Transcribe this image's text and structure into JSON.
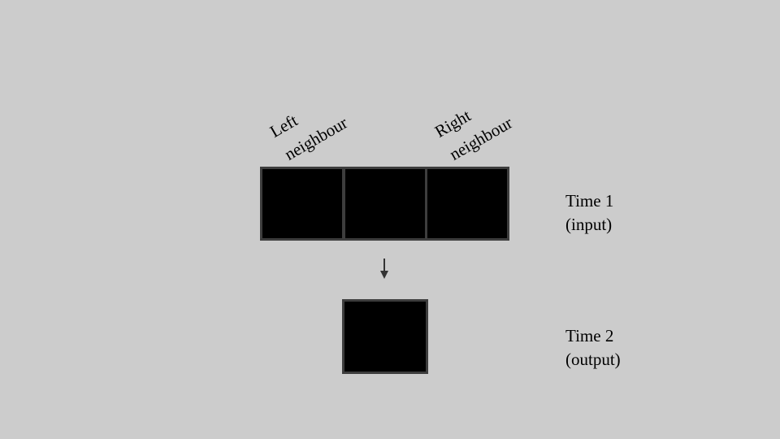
{
  "neighbour_labels": {
    "left": {
      "line1": "Left",
      "line2": "neighbour"
    },
    "right": {
      "line1": "Right",
      "line2": "neighbour"
    }
  },
  "time_labels": {
    "input": {
      "line1": "Time 1",
      "line2": "(input)"
    },
    "output": {
      "line1": "Time 2",
      "line2": "(output)"
    }
  },
  "colors": {
    "background": "#cccccc",
    "cell_fill": "#000000",
    "cell_border": "#3d3d3d",
    "arrow": "#333333"
  },
  "icons": {
    "transition": "arrow-down-icon"
  }
}
